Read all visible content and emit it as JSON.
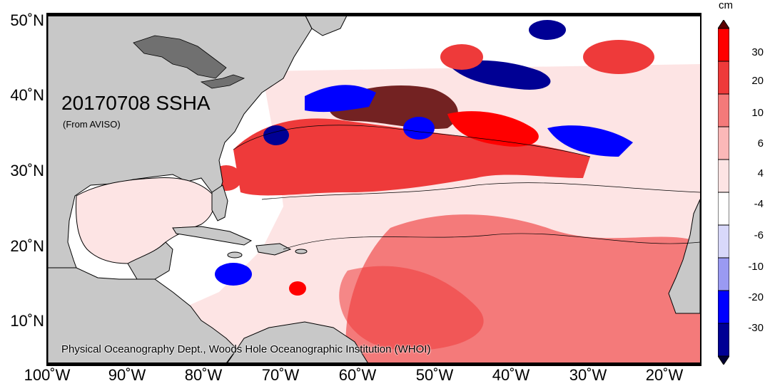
{
  "map": {
    "title": "20170708 SSHA",
    "subtitle": "(From AVISO)",
    "credit": "Physical Oceanography Dept., Woods Hole Oceanographic Institution (WHOI)",
    "extent": {
      "lon_min": -100,
      "lon_max": -15,
      "lat_min": 5,
      "lat_max": 51
    },
    "lat_labels": [
      "50˚N",
      "40˚N",
      "30˚N",
      "20˚N",
      "10˚N"
    ],
    "lon_labels": [
      "100˚W",
      "90˚W",
      "80˚W",
      "70˚W",
      "60˚W",
      "50˚W",
      "40˚W",
      "30˚W",
      "20˚W"
    ],
    "colors": {
      "land": "#c8c8c8",
      "lakes": "#707070",
      "coast": "#000000"
    }
  },
  "colorbar": {
    "unit": "cm",
    "tick_labels": [
      "30",
      "20",
      "10",
      "6",
      "4",
      "-4",
      "-6",
      "-10",
      "-20",
      "-30"
    ],
    "class_colors": [
      "#5a0000",
      "#ff0000",
      "#ee3a3a",
      "#f47a7a",
      "#fbb8b8",
      "#fde4e4",
      "#ffffff",
      "#d8d8fa",
      "#9a9af2",
      "#0000ff",
      "#000094",
      "#000033"
    ]
  }
}
